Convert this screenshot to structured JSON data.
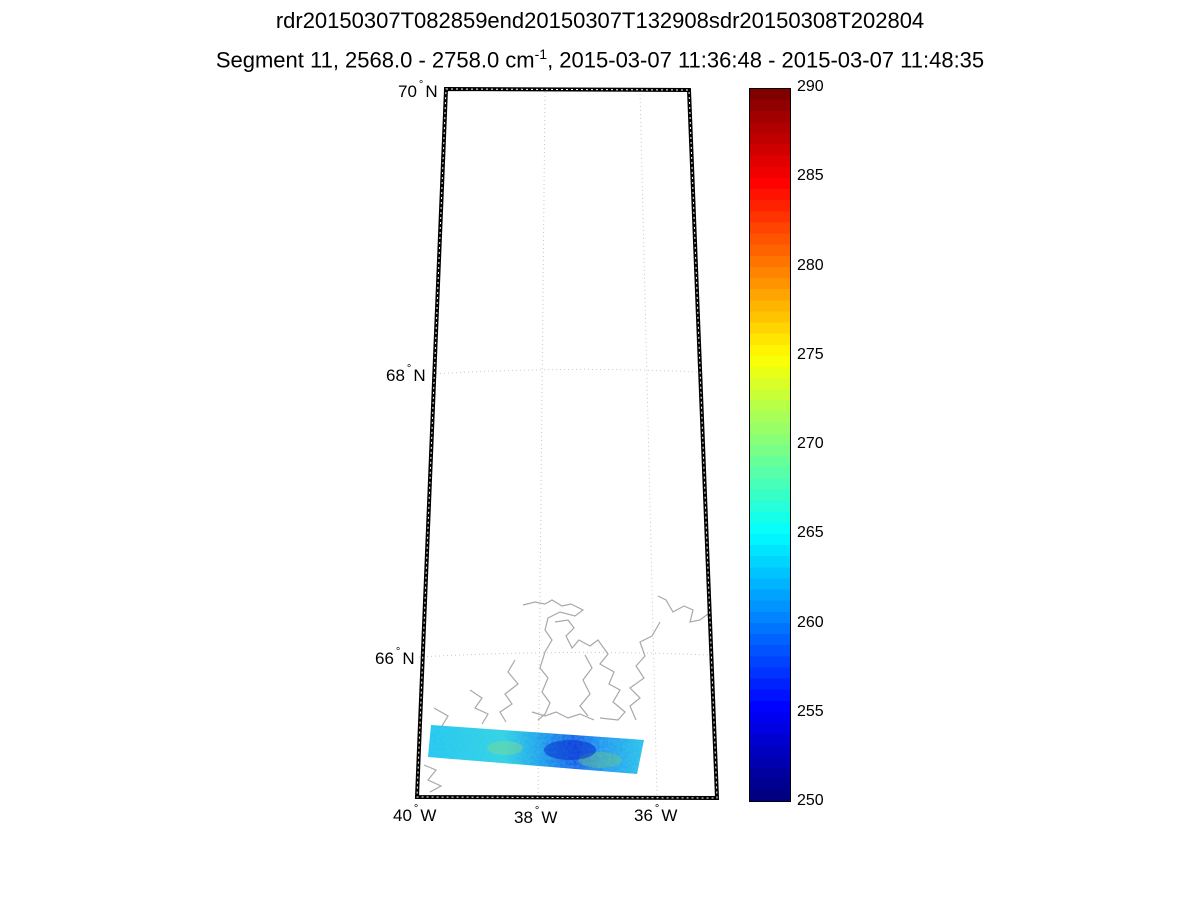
{
  "title": {
    "line1": "rdr20150307T082859end20150307T132908sdr20150308T202804",
    "line2_prefix": "Segment 11, 2568.0 - 2758.0 cm",
    "line2_sup": "-1",
    "line2_suffix": ", 2015-03-07 11:36:48 - 2015-03-07 11:48:35"
  },
  "map": {
    "lat_labels": [
      {
        "value": "70",
        "hemi": "N"
      },
      {
        "value": "68",
        "hemi": "N"
      },
      {
        "value": "66",
        "hemi": "N"
      }
    ],
    "lon_labels": [
      {
        "value": "40",
        "hemi": "W"
      },
      {
        "value": "38",
        "hemi": "W"
      },
      {
        "value": "36",
        "hemi": "W"
      }
    ],
    "degree_symbol": "°"
  },
  "colorbar": {
    "min": 250,
    "max": 290,
    "ticks": [
      "250",
      "255",
      "260",
      "265",
      "270",
      "275",
      "280",
      "285",
      "290"
    ],
    "colormap": "jet"
  }
}
